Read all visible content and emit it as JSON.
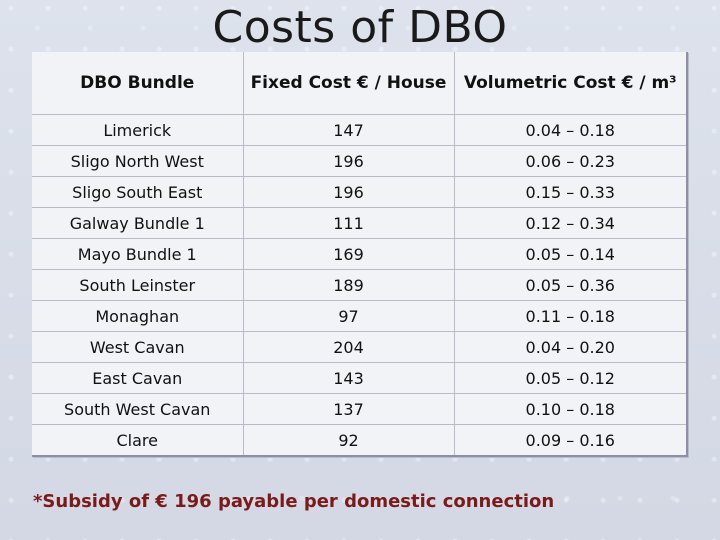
{
  "slide": {
    "title": "Costs of DBO",
    "footnote": "*Subsidy of € 196 payable per domestic connection"
  },
  "table": {
    "headers": [
      "DBO Bundle",
      "Fixed Cost € / House",
      "Volumetric Cost € / m³"
    ],
    "rows": [
      [
        "Limerick",
        "147",
        "0.04 – 0.18"
      ],
      [
        "Sligo North West",
        "196",
        "0.06 – 0.23"
      ],
      [
        "Sligo South East",
        "196",
        "0.15 – 0.33"
      ],
      [
        "Galway Bundle 1",
        "111",
        "0.12 – 0.34"
      ],
      [
        "Mayo Bundle 1",
        "169",
        "0.05 – 0.14"
      ],
      [
        "South Leinster",
        "189",
        "0.05 – 0.36"
      ],
      [
        "Monaghan",
        "97",
        "0.11 – 0.18"
      ],
      [
        "West Cavan",
        "204",
        "0.04 – 0.20"
      ],
      [
        "East Cavan",
        "143",
        "0.05 – 0.12"
      ],
      [
        "South West Cavan",
        "137",
        "0.10 – 0.18"
      ],
      [
        "Clare",
        "92",
        "0.09 – 0.16"
      ]
    ]
  }
}
